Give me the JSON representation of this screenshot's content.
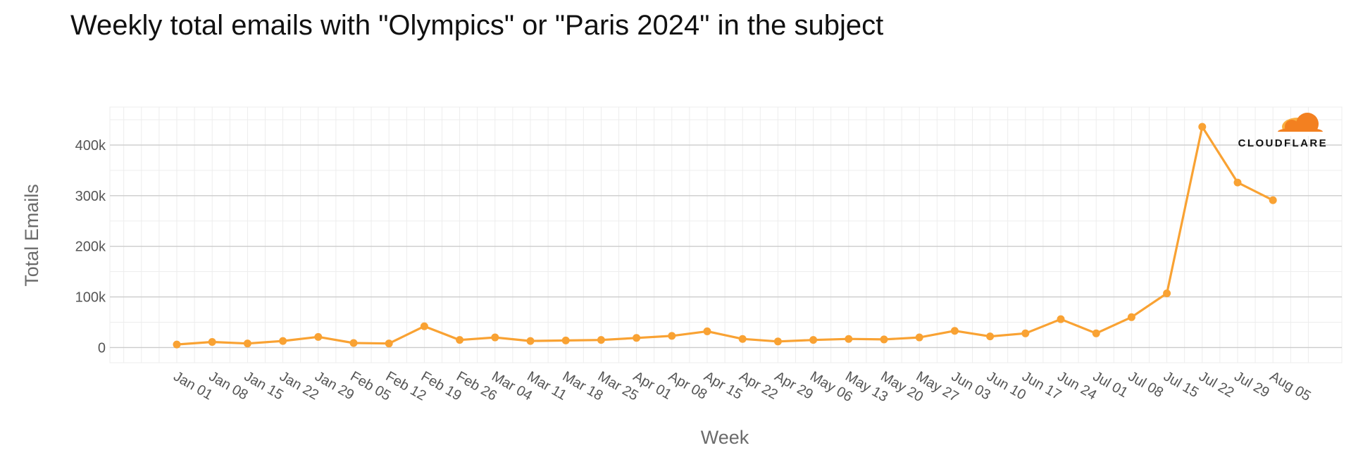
{
  "chart_data": {
    "type": "line",
    "title": "Weekly total emails with \"Olympics\" or \"Paris 2024\" in the subject",
    "xlabel": "Week",
    "ylabel": "Total Emails",
    "categories": [
      "Jan 01",
      "Jan 08",
      "Jan 15",
      "Jan 22",
      "Jan 29",
      "Feb 05",
      "Feb 12",
      "Feb 19",
      "Feb 26",
      "Mar 04",
      "Mar 11",
      "Mar 18",
      "Mar 25",
      "Apr 01",
      "Apr 08",
      "Apr 15",
      "Apr 22",
      "Apr 29",
      "May 06",
      "May 13",
      "May 20",
      "May 27",
      "Jun 03",
      "Jun 10",
      "Jun 17",
      "Jun 24",
      "Jul 01",
      "Jul 08",
      "Jul 15",
      "Jul 22",
      "Jul 29",
      "Aug 05"
    ],
    "series": [
      {
        "values": [
          6000,
          11000,
          8000,
          13000,
          21000,
          9000,
          8000,
          42000,
          15000,
          20000,
          13000,
          14000,
          15000,
          19000,
          23000,
          32000,
          17000,
          12000,
          15000,
          17000,
          16000,
          20000,
          33000,
          22000,
          28000,
          56000,
          28000,
          60000,
          107000,
          436000,
          326000,
          291000
        ],
        "color": "#f9a233"
      }
    ],
    "ylim": [
      -30000,
      475000
    ],
    "yticks": [
      0,
      100000,
      200000,
      300000,
      400000
    ],
    "ytick_labels": [
      "0",
      "100k",
      "200k",
      "300k",
      "400k"
    ],
    "grid": true,
    "panel_color": "#ffffff",
    "grid_color": "#cccccc",
    "minor_grid_color": "#ededed"
  },
  "brand": {
    "name": "CLOUDFLARE",
    "icon": "cloudflare-cloud-icon",
    "colors": [
      "#f38020",
      "#faae40"
    ]
  }
}
